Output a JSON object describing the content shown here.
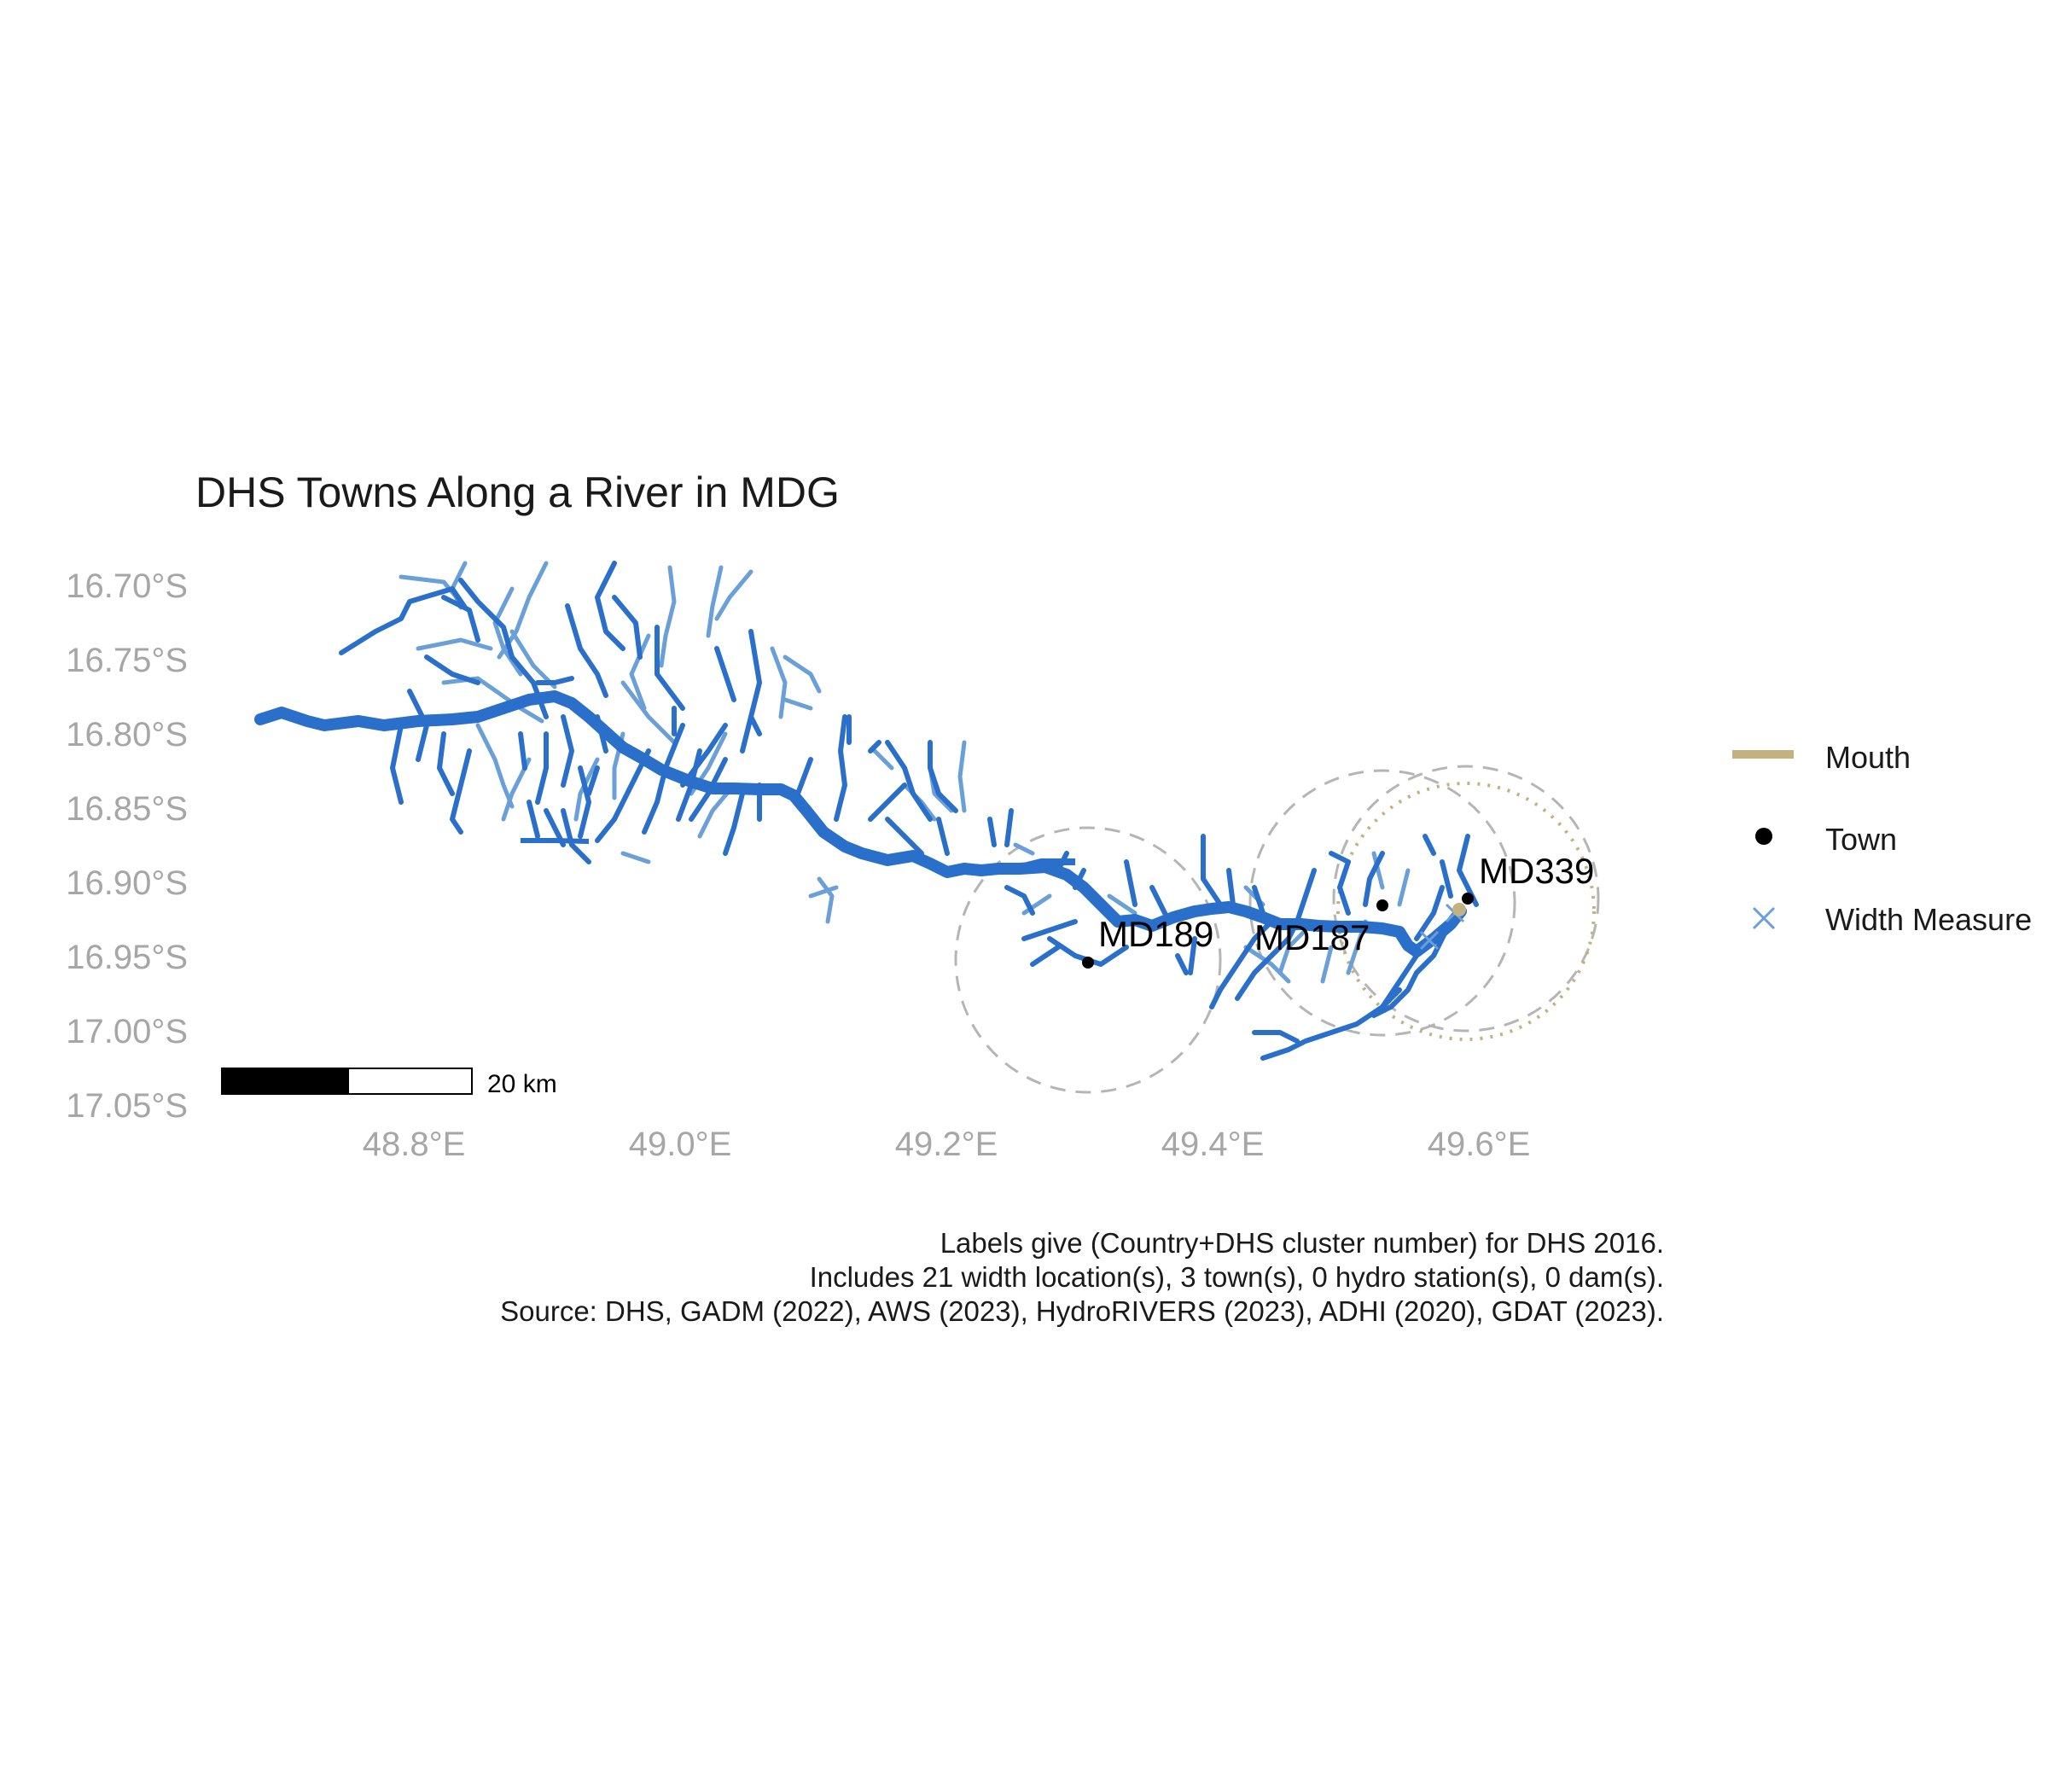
{
  "title": "DHS Towns Along a River in MDG",
  "axes": {
    "y_ticks": [
      "16.70°S",
      "16.75°S",
      "16.80°S",
      "16.85°S",
      "16.90°S",
      "16.95°S",
      "17.00°S",
      "17.05°S"
    ],
    "x_ticks": [
      "48.8°E",
      "49.0°E",
      "49.2°E",
      "49.4°E",
      "49.6°E"
    ]
  },
  "legend": {
    "mouth": "Mouth",
    "town": "Town",
    "width_measure": "Width Measure",
    "colors": {
      "mouth": "#c2b280",
      "town": "#000000",
      "width_measure": "#6a9fd8",
      "river": "#2a6fc9",
      "tributary": "#6a9fd8"
    }
  },
  "towns": [
    {
      "label": "MD189",
      "lon": 49.3,
      "lat": -16.955
    },
    {
      "label": "MD187",
      "lon": 49.52,
      "lat": -16.915
    },
    {
      "label": "MD339",
      "lon": 49.585,
      "lat": -16.91
    }
  ],
  "scale_bar": {
    "label": "20 km"
  },
  "caption": [
    "Labels give (Country+DHS cluster number) for DHS 2016.",
    "Includes 21 width location(s), 3 town(s), 0 hydro station(s), 0 dam(s).",
    "Source: DHS, GADM (2022), AWS (2023), HydroRIVERS (2023), ADHI (2020), GDAT (2023)."
  ]
}
